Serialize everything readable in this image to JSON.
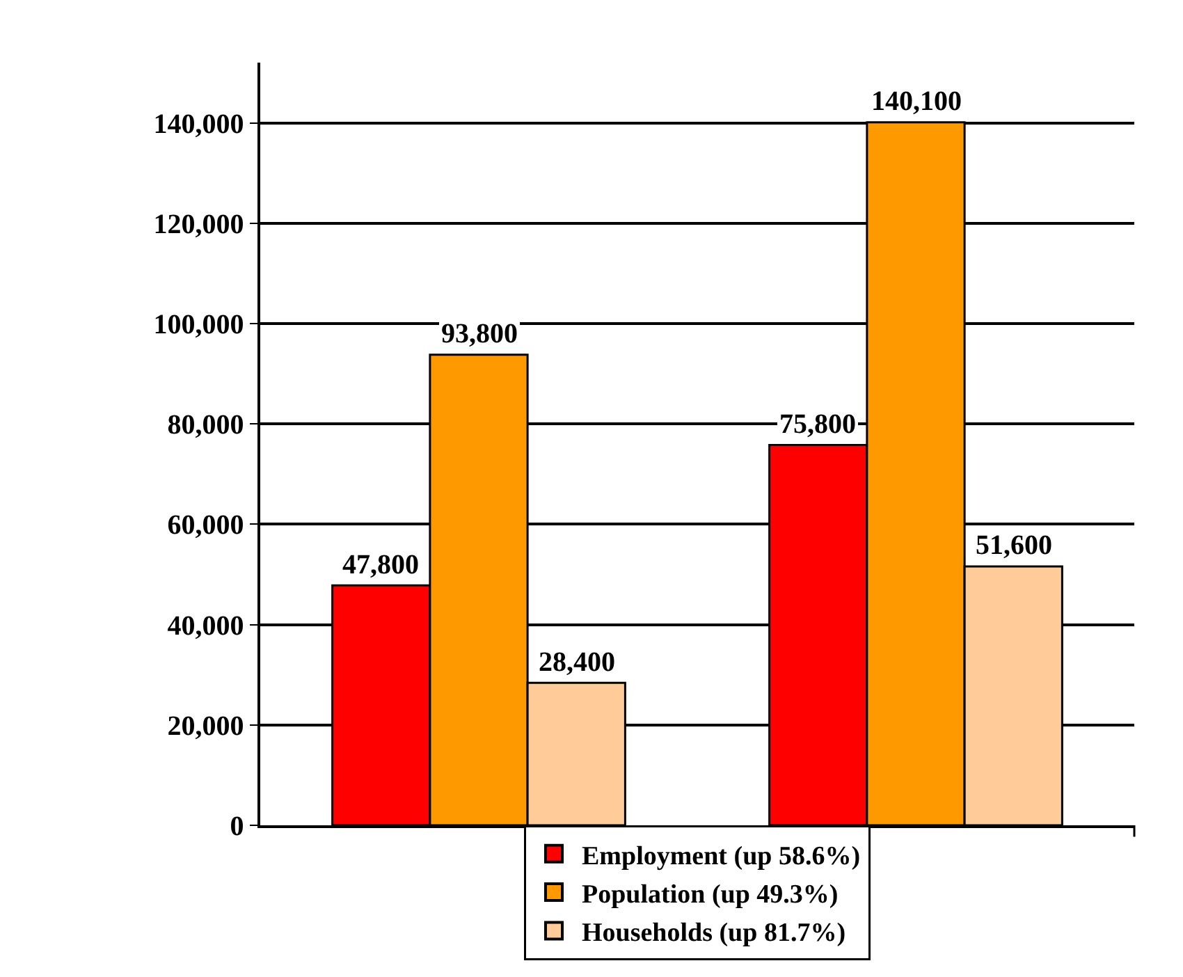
{
  "chart_data": {
    "type": "bar",
    "categories": [
      null,
      null
    ],
    "series": [
      {
        "name": "Employment (up 58.6%)",
        "color": "#ff0000",
        "values": [
          47800,
          75800
        ],
        "value_labels": [
          "47,800",
          "75,800"
        ]
      },
      {
        "name": "Population (up 49.3%)",
        "color": "#ff9900",
        "values": [
          93800,
          140100
        ],
        "value_labels": [
          "93,800",
          "140,100"
        ]
      },
      {
        "name": "Households (up 81.7%)",
        "color": "#ffcc99",
        "values": [
          28400,
          51600
        ],
        "value_labels": [
          "28,400",
          "51,600"
        ]
      }
    ],
    "ylim": [
      0,
      152000
    ],
    "yticks": [
      {
        "value": 0,
        "label": "0"
      },
      {
        "value": 20000,
        "label": "20,000"
      },
      {
        "value": 40000,
        "label": "40,000"
      },
      {
        "value": 60000,
        "label": "60,000"
      },
      {
        "value": 80000,
        "label": "80,000"
      },
      {
        "value": 100000,
        "label": "100,000"
      },
      {
        "value": 120000,
        "label": "120,000"
      },
      {
        "value": 140000,
        "label": "140,000"
      }
    ],
    "grid": "y",
    "legend": "bottom"
  }
}
